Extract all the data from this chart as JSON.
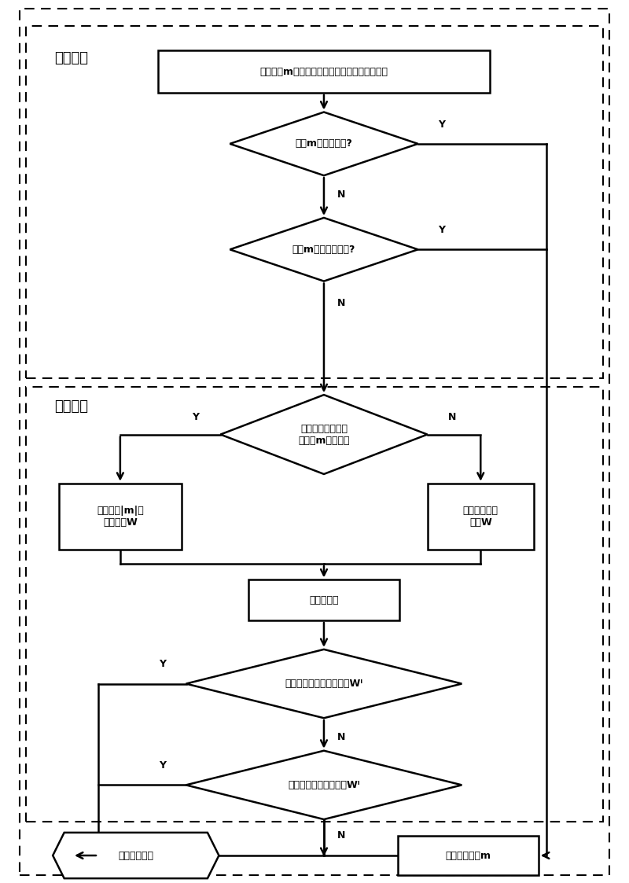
{
  "bg_color": "#ffffff",
  "section1_label": "选择策略",
  "section2_label": "筛选策略",
  "fig_width": 8.0,
  "fig_height": 11.23,
  "dpi": 100,
  "start_text": "读取报文m请求信息并与节点存储器中报文比较",
  "d1_text": "报文m优先级最低?",
  "d2_text": "报文m路由最迟可用?",
  "d3_text": "节点存储器中存在\n比报文m大的报文",
  "rl_text": "生成大于|m|的\n报文集合W",
  "rr_text": "生成所有报文\n集合W",
  "rt_text": "读取路由表",
  "d4_text": "筛选出最迟可用路由报文Wᴵ",
  "d5_text": "筛选出最长生存期报文Wᴵ",
  "hex_text": "选择目标节点",
  "rej_text": "拒绝接收报文m"
}
